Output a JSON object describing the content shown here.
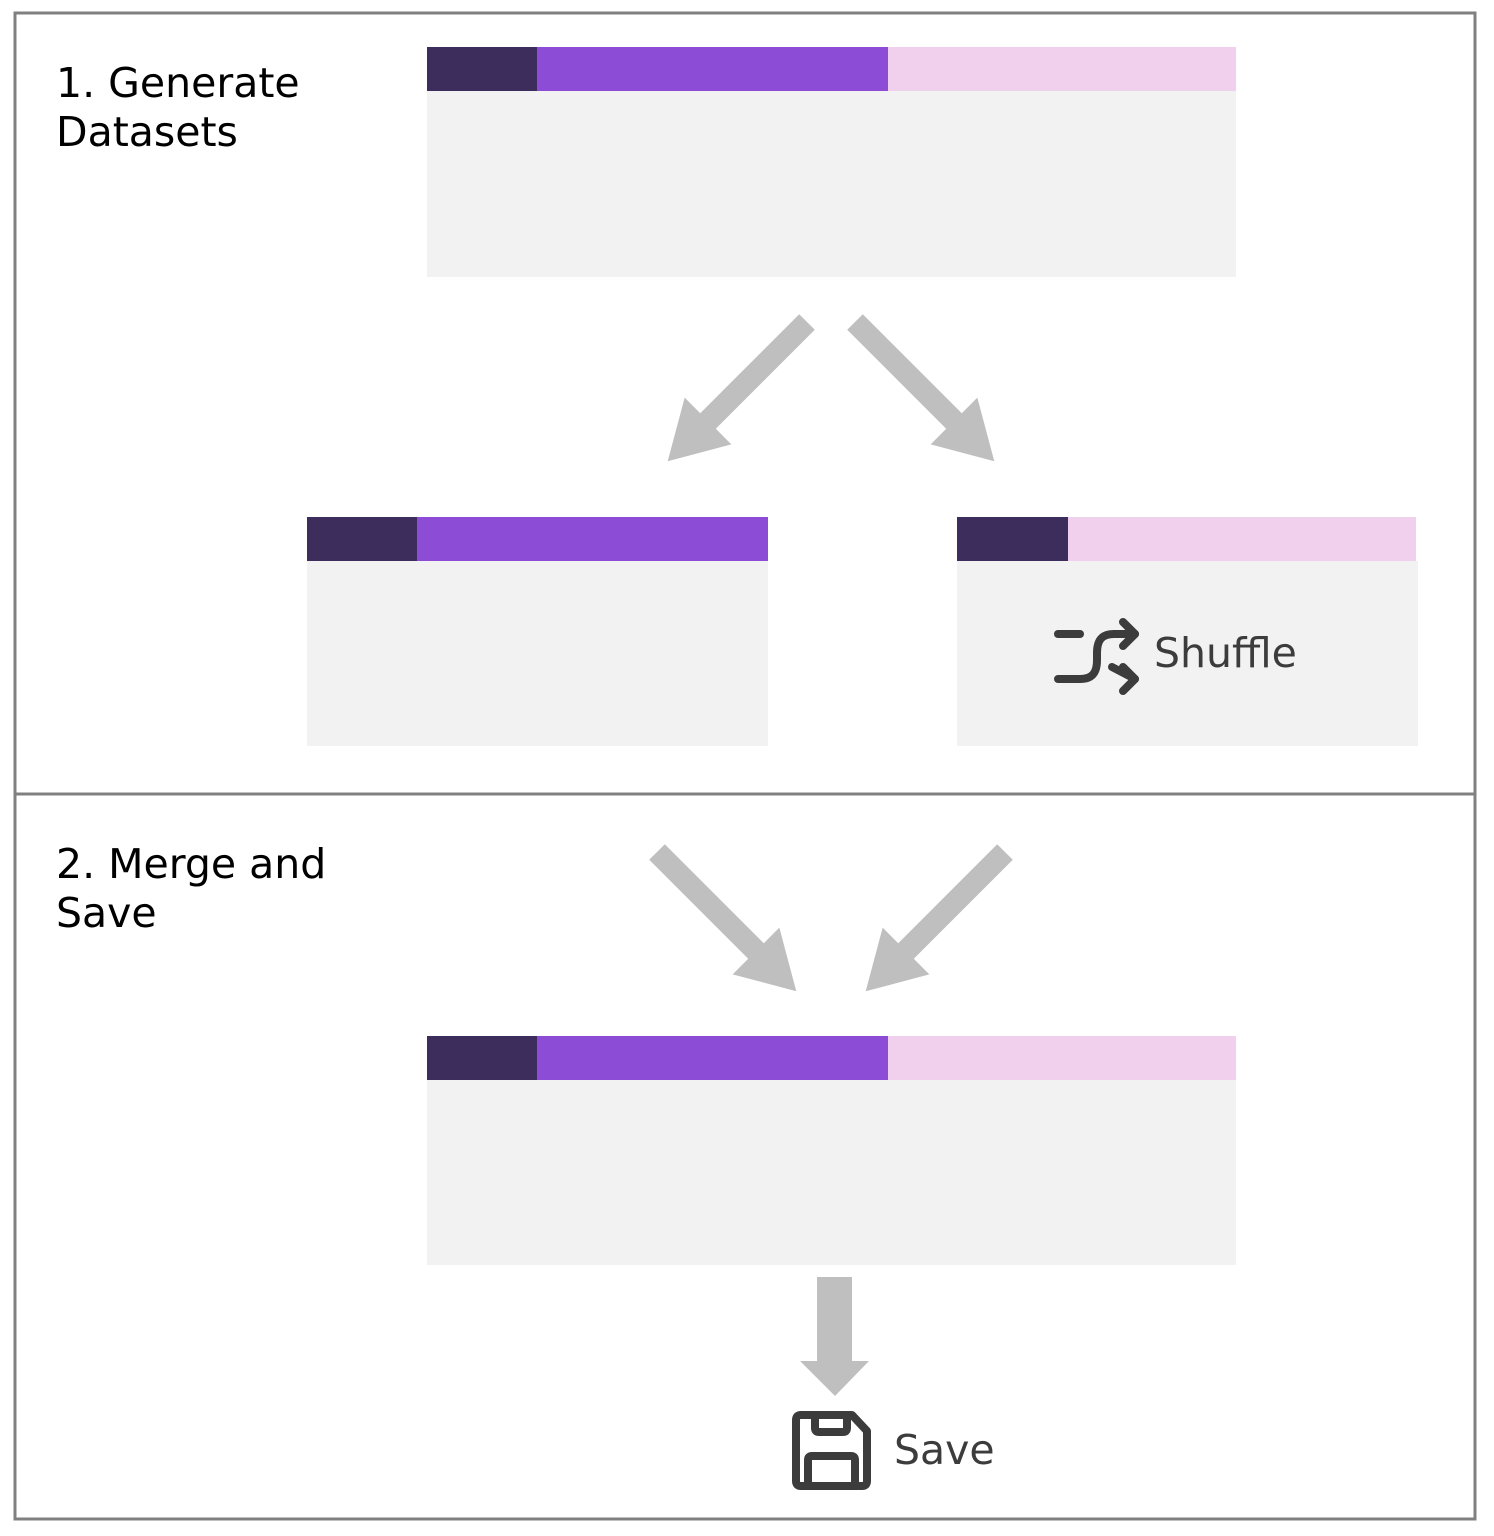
{
  "sections": [
    {
      "title_line1": "1. Generate",
      "title_line2": "Datasets"
    },
    {
      "title_line1": "2. Merge and",
      "title_line2": "Save"
    }
  ],
  "operations": {
    "shuffle": {
      "label": "Shuffle",
      "icon": "shuffle-icon"
    },
    "save": {
      "label": "Save",
      "icon": "floppy-disk-icon"
    }
  },
  "colors": {
    "border": "#808080",
    "table_body": "#f2f2f2",
    "column_dark": "#3d2d5c",
    "column_purple": "#8c4cd5",
    "column_pink": "#f1d0ee",
    "arrow": "#bfbfbf",
    "icon": "#3c3c3c"
  }
}
